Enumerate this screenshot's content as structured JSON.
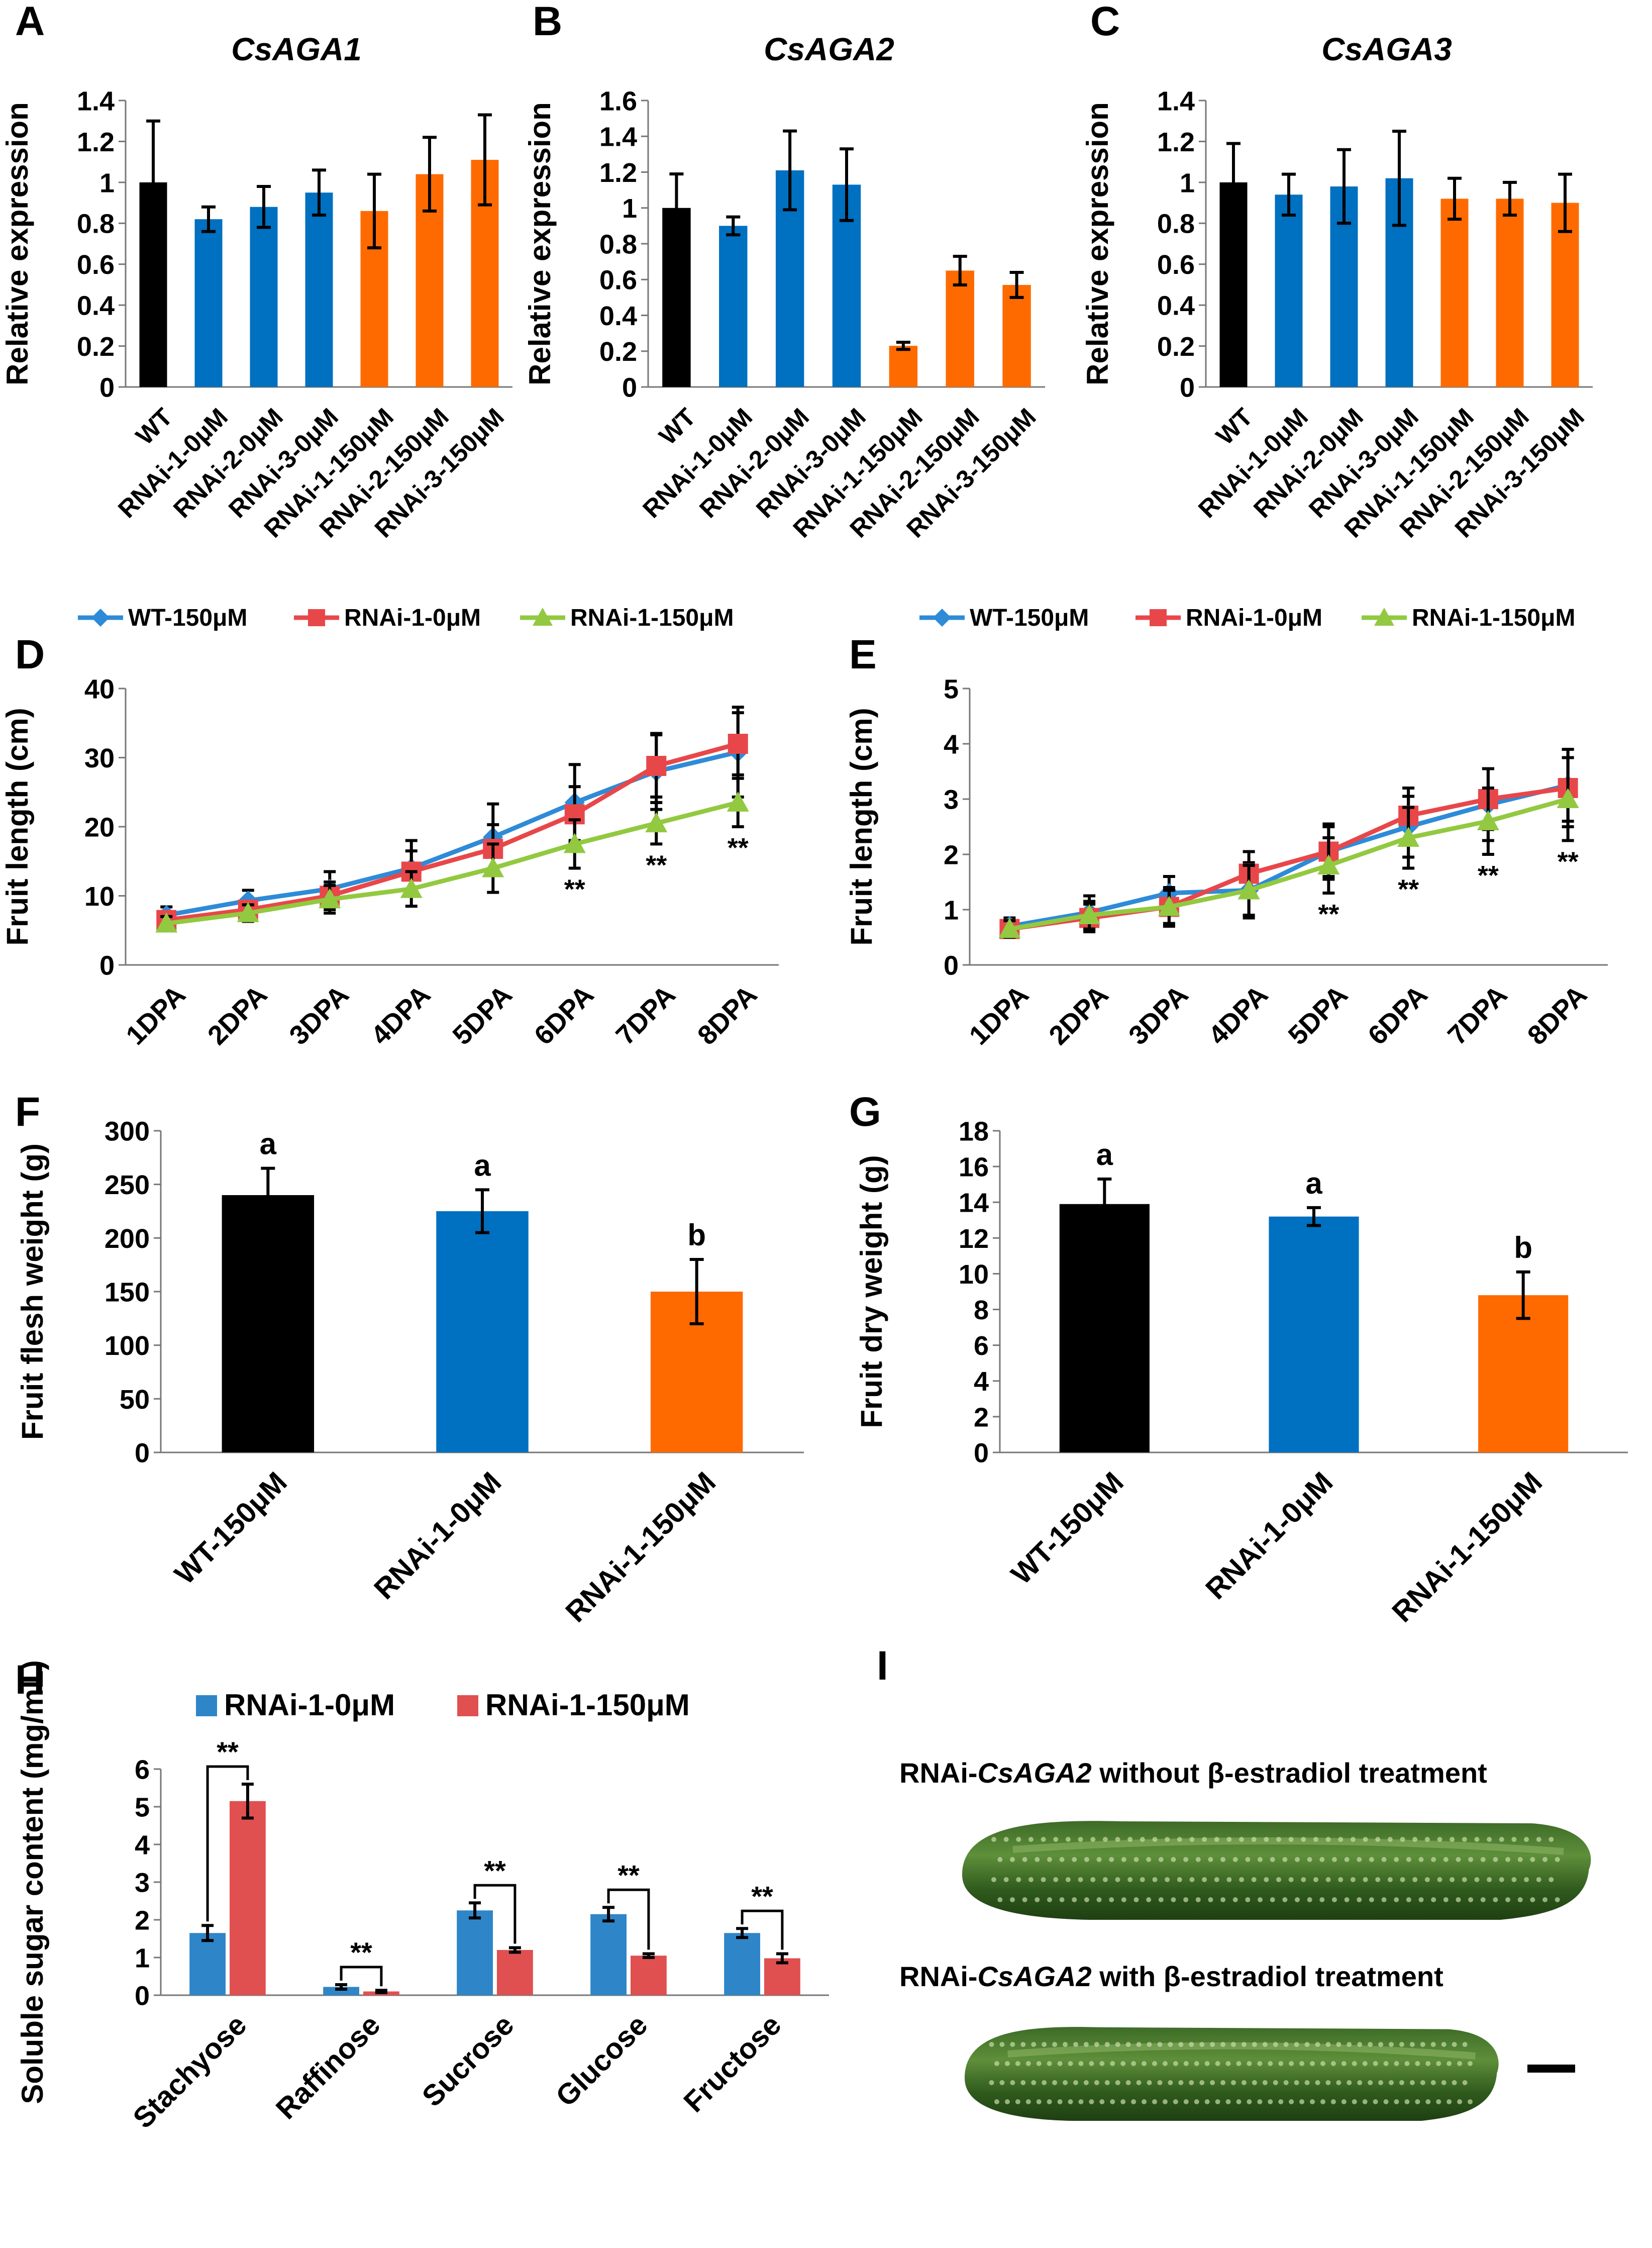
{
  "colors": {
    "black": "#000000",
    "blue": "#0070C0",
    "orange": "#FF6A00",
    "red_line": "#E8474A",
    "green_line": "#92C940",
    "blue_line": "#2E8BD8",
    "bar_blue": "#2E86C8",
    "bar_red": "#E05050"
  },
  "chart_data": [
    {
      "id": "A",
      "type": "bar",
      "title": "CsAGA1",
      "ylabel": "Relative expression",
      "categories": [
        "WT",
        "RNAi-1-0μM",
        "RNAi-2-0μM",
        "RNAi-3-0μM",
        "RNAi-1-150μM",
        "RNAi-2-150μM",
        "RNAi-3-150μM"
      ],
      "values": [
        1.0,
        0.82,
        0.88,
        0.95,
        0.86,
        1.04,
        1.11
      ],
      "errors": [
        0.3,
        0.06,
        0.1,
        0.11,
        0.18,
        0.18,
        0.22
      ],
      "bar_colors": [
        "black",
        "blue",
        "blue",
        "blue",
        "orange",
        "orange",
        "orange"
      ],
      "ylim": [
        0,
        1.4
      ],
      "yticks": [
        "0",
        "0.2",
        "0.4",
        "0.6",
        "0.8",
        "1",
        "1.2",
        "1.4"
      ],
      "ytick_values": [
        0,
        0.2,
        0.4,
        0.6,
        0.8,
        1,
        1.2,
        1.4
      ]
    },
    {
      "id": "B",
      "type": "bar",
      "title": "CsAGA2",
      "ylabel": "Relative expression",
      "categories": [
        "WT",
        "RNAi-1-0μM",
        "RNAi-2-0μM",
        "RNAi-3-0μM",
        "RNAi-1-150μM",
        "RNAi-2-150μM",
        "RNAi-3-150μM"
      ],
      "values": [
        1.0,
        0.9,
        1.21,
        1.13,
        0.23,
        0.65,
        0.57
      ],
      "errors": [
        0.19,
        0.05,
        0.22,
        0.2,
        0.02,
        0.08,
        0.07
      ],
      "bar_colors": [
        "black",
        "blue",
        "blue",
        "blue",
        "orange",
        "orange",
        "orange"
      ],
      "ylim": [
        0,
        1.6
      ],
      "yticks": [
        "0",
        "0.2",
        "0.4",
        "0.6",
        "0.8",
        "1",
        "1.2",
        "1.4",
        "1.6"
      ],
      "ytick_values": [
        0,
        0.2,
        0.4,
        0.6,
        0.8,
        1,
        1.2,
        1.4,
        1.6
      ]
    },
    {
      "id": "C",
      "type": "bar",
      "title": "CsAGA3",
      "ylabel": "Relative expression",
      "categories": [
        "WT",
        "RNAi-1-0μM",
        "RNAi-2-0μM",
        "RNAi-3-0μM",
        "RNAi-1-150μM",
        "RNAi-2-150μM",
        "RNAi-3-150μM"
      ],
      "values": [
        1.0,
        0.94,
        0.98,
        1.02,
        0.92,
        0.92,
        0.9
      ],
      "errors": [
        0.19,
        0.1,
        0.18,
        0.23,
        0.1,
        0.08,
        0.14
      ],
      "bar_colors": [
        "black",
        "blue",
        "blue",
        "blue",
        "orange",
        "orange",
        "orange"
      ],
      "ylim": [
        0,
        1.4
      ],
      "yticks": [
        "0",
        "0.2",
        "0.4",
        "0.6",
        "0.8",
        "1",
        "1.2",
        "1.4"
      ],
      "ytick_values": [
        0,
        0.2,
        0.4,
        0.6,
        0.8,
        1,
        1.2,
        1.4
      ]
    },
    {
      "id": "D",
      "type": "line",
      "ylabel": "Fruit length (cm)",
      "categories": [
        "1DPA",
        "2DPA",
        "3DPA",
        "4DPA",
        "5DPA",
        "6DPA",
        "7DPA",
        "8DPA"
      ],
      "series": [
        {
          "name": "WT-150μM",
          "color": "blue_line",
          "marker": "diamond",
          "values": [
            7.2,
            9.3,
            11.0,
            14.0,
            18.5,
            23.5,
            28.0,
            30.8
          ],
          "errors": [
            1.2,
            1.5,
            2.5,
            4.0,
            4.8,
            5.5,
            5.5,
            6.5
          ]
        },
        {
          "name": "RNAi-1-0μM",
          "color": "red_line",
          "marker": "square",
          "values": [
            6.5,
            8.0,
            10.0,
            13.5,
            16.8,
            21.8,
            28.8,
            32.0
          ],
          "errors": [
            1.0,
            1.2,
            2.0,
            3.0,
            3.5,
            4.0,
            4.5,
            4.5
          ]
        },
        {
          "name": "RNAi-1-150μM",
          "color": "green_line",
          "marker": "triangle",
          "values": [
            6.0,
            7.5,
            9.5,
            11.0,
            14.0,
            17.5,
            20.5,
            23.5
          ],
          "errors": [
            1.0,
            1.2,
            2.0,
            2.5,
            3.5,
            3.5,
            3.0,
            3.5
          ]
        }
      ],
      "annotations": [
        "",
        "",
        "",
        "",
        "",
        "**",
        "**",
        "**"
      ],
      "ylim": [
        0,
        40
      ],
      "yticks": [
        "0",
        "10",
        "20",
        "30",
        "40"
      ],
      "ytick_values": [
        0,
        10,
        20,
        30,
        40
      ]
    },
    {
      "id": "E",
      "type": "line",
      "ylabel": "Fruit length (cm)",
      "categories": [
        "1DPA",
        "2DPA",
        "3DPA",
        "4DPA",
        "5DPA",
        "6DPA",
        "7DPA",
        "8DPA"
      ],
      "series": [
        {
          "name": "WT-150μM",
          "color": "blue_line",
          "marker": "diamond",
          "values": [
            0.7,
            0.95,
            1.3,
            1.35,
            2.05,
            2.5,
            2.9,
            3.25
          ],
          "errors": [
            0.15,
            0.3,
            0.3,
            0.5,
            0.5,
            0.55,
            0.65,
            0.65
          ]
        },
        {
          "name": "RNAi-1-0μM",
          "color": "red_line",
          "marker": "square",
          "values": [
            0.65,
            0.85,
            1.05,
            1.65,
            2.05,
            2.7,
            3.0,
            3.2
          ],
          "errors": [
            0.15,
            0.25,
            0.3,
            0.4,
            0.45,
            0.5,
            0.55,
            0.7
          ]
        },
        {
          "name": "RNAi-1-150μM",
          "color": "green_line",
          "marker": "triangle",
          "values": [
            0.65,
            0.9,
            1.05,
            1.35,
            1.8,
            2.3,
            2.6,
            3.0
          ],
          "errors": [
            0.15,
            0.25,
            0.35,
            0.45,
            0.5,
            0.55,
            0.6,
            0.75
          ]
        }
      ],
      "annotations": [
        "",
        "",
        "",
        "",
        "**",
        "**",
        "**",
        "**"
      ],
      "ylim": [
        0,
        5
      ],
      "yticks": [
        "0",
        "1",
        "2",
        "3",
        "4",
        "5"
      ],
      "ytick_values": [
        0,
        1,
        2,
        3,
        4,
        5
      ]
    },
    {
      "id": "F",
      "type": "bar",
      "ylabel": "Fruit flesh weight (g)",
      "categories": [
        "WT-150μM",
        "RNAi-1-0μM",
        "RNAi-1-150μM"
      ],
      "values": [
        240,
        225,
        150
      ],
      "errors": [
        25,
        20,
        30
      ],
      "letters": [
        "a",
        "a",
        "b"
      ],
      "bar_colors": [
        "black",
        "blue",
        "orange"
      ],
      "ylim": [
        0,
        300
      ],
      "yticks": [
        "0",
        "50",
        "100",
        "150",
        "200",
        "250",
        "300"
      ],
      "ytick_values": [
        0,
        50,
        100,
        150,
        200,
        250,
        300
      ]
    },
    {
      "id": "G",
      "type": "bar",
      "ylabel": "Fruit dry weight (g)",
      "categories": [
        "WT-150μM",
        "RNAi-1-0μM",
        "RNAi-1-150μM"
      ],
      "values": [
        13.9,
        13.2,
        8.8
      ],
      "errors": [
        1.4,
        0.5,
        1.3
      ],
      "letters": [
        "a",
        "a",
        "b"
      ],
      "bar_colors": [
        "black",
        "blue",
        "orange"
      ],
      "ylim": [
        0,
        18
      ],
      "yticks": [
        "0",
        "2",
        "4",
        "6",
        "8",
        "10",
        "12",
        "14",
        "16",
        "18"
      ],
      "ytick_values": [
        0,
        2,
        4,
        6,
        8,
        10,
        12,
        14,
        16,
        18
      ]
    },
    {
      "id": "H",
      "type": "bar",
      "ylabel": "Soluble sugar content (mg/mL)",
      "categories": [
        "Stachyose",
        "Raffinose",
        "Sucrose",
        "Glucose",
        "Fructose"
      ],
      "series": [
        {
          "name": "RNAi-1-0μM",
          "color": "bar_blue",
          "values": [
            1.65,
            0.22,
            2.25,
            2.15,
            1.65
          ],
          "errors": [
            0.2,
            0.06,
            0.2,
            0.18,
            0.12
          ]
        },
        {
          "name": "RNAi-1-150μM",
          "color": "bar_red",
          "values": [
            5.15,
            0.1,
            1.2,
            1.05,
            0.98
          ],
          "errors": [
            0.45,
            0.03,
            0.06,
            0.05,
            0.12
          ]
        }
      ],
      "annotations": [
        "**",
        "**",
        "**",
        "**",
        "**"
      ],
      "ylim": [
        0,
        6
      ],
      "yticks": [
        "0",
        "1",
        "2",
        "3",
        "4",
        "5",
        "6"
      ],
      "ytick_values": [
        0,
        1,
        2,
        3,
        4,
        5,
        6
      ]
    }
  ],
  "panel_I": {
    "letter": "I",
    "caption_top_prefix": "RNAi-",
    "caption_top_gene": "CsAGA2",
    "caption_top_suffix": " without β-estradiol treatment",
    "caption_bottom_prefix": "RNAi-",
    "caption_bottom_gene": "CsAGA2",
    "caption_bottom_suffix": " with β-estradiol treatment"
  }
}
